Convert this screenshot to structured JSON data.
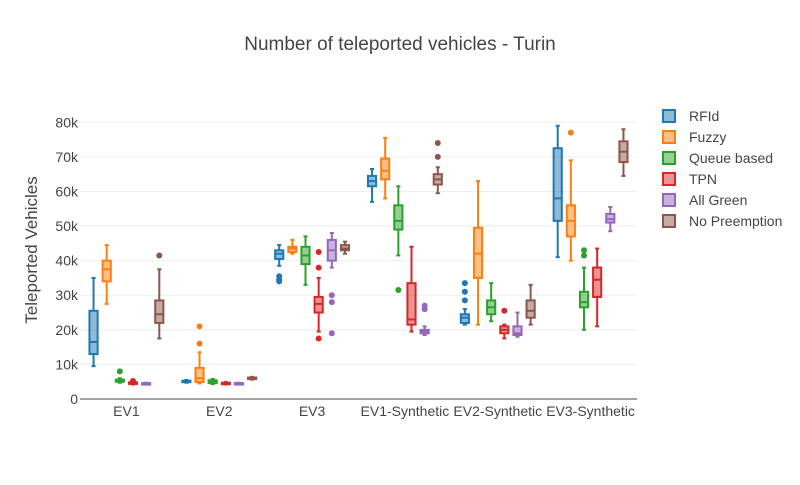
{
  "chart_data": {
    "type": "box",
    "title": "Number of teleported vehicles - Turin",
    "ylabel": "Teleported Vehicles",
    "xlabel": "",
    "ylim": [
      0,
      85000
    ],
    "yticks": [
      0,
      10000,
      20000,
      30000,
      40000,
      50000,
      60000,
      70000,
      80000
    ],
    "ytick_labels": [
      "0",
      "10k",
      "20k",
      "30k",
      "40k",
      "50k",
      "60k",
      "70k",
      "80k"
    ],
    "grid": true,
    "legend_position": "right",
    "categories": [
      "EV1",
      "EV2",
      "EV3",
      "EV1-Synthetic",
      "EV2-Synthetic",
      "EV3-Synthetic"
    ],
    "series": [
      {
        "name": "RFId",
        "color": "#1f77b4",
        "boxes": [
          {
            "min": 9500,
            "q1": 13000,
            "median": 16500,
            "q3": 25500,
            "max": 35000,
            "outliers": []
          },
          {
            "min": 4700,
            "q1": 4900,
            "median": 5100,
            "q3": 5300,
            "max": 5500,
            "outliers": []
          },
          {
            "min": 38500,
            "q1": 40500,
            "median": 42000,
            "q3": 43000,
            "max": 44500,
            "outliers": [
              35500,
              34500,
              34000
            ]
          },
          {
            "min": 57000,
            "q1": 61500,
            "median": 63000,
            "q3": 64500,
            "max": 66500,
            "outliers": []
          },
          {
            "min": 21500,
            "q1": 22000,
            "median": 23500,
            "q3": 24500,
            "max": 26000,
            "outliers": [
              33500,
              31000,
              28500
            ]
          },
          {
            "min": 41000,
            "q1": 51500,
            "median": 58000,
            "q3": 72500,
            "max": 79000,
            "outliers": []
          }
        ]
      },
      {
        "name": "Fuzzy",
        "color": "#ff7f0e",
        "boxes": [
          {
            "min": 27500,
            "q1": 34000,
            "median": 37500,
            "q3": 40000,
            "max": 44500,
            "outliers": []
          },
          {
            "min": 4500,
            "q1": 4900,
            "median": 6000,
            "q3": 9000,
            "max": 13500,
            "outliers": [
              16000,
              21000
            ]
          },
          {
            "min": 42000,
            "q1": 42500,
            "median": 43500,
            "q3": 44000,
            "max": 46000,
            "outliers": []
          },
          {
            "min": 58000,
            "q1": 63500,
            "median": 66000,
            "q3": 69500,
            "max": 75500,
            "outliers": []
          },
          {
            "min": 21500,
            "q1": 35000,
            "median": 42000,
            "q3": 49500,
            "max": 63000,
            "outliers": []
          },
          {
            "min": 40000,
            "q1": 47000,
            "median": 51500,
            "q3": 56000,
            "max": 69000,
            "outliers": [
              77000
            ]
          }
        ]
      },
      {
        "name": "Queue based",
        "color": "#2ca02c",
        "boxes": [
          {
            "min": 4700,
            "q1": 5000,
            "median": 5300,
            "q3": 5600,
            "max": 6000,
            "outliers": [
              8000
            ]
          },
          {
            "min": 4300,
            "q1": 4600,
            "median": 5000,
            "q3": 5400,
            "max": 5800,
            "outliers": []
          },
          {
            "min": 33000,
            "q1": 39000,
            "median": 41500,
            "q3": 44000,
            "max": 47000,
            "outliers": []
          },
          {
            "min": 41500,
            "q1": 49000,
            "median": 51500,
            "q3": 56000,
            "max": 61500,
            "outliers": [
              31500
            ]
          },
          {
            "min": 22500,
            "q1": 24500,
            "median": 26500,
            "q3": 28500,
            "max": 33500,
            "outliers": []
          },
          {
            "min": 20000,
            "q1": 26500,
            "median": 28000,
            "q3": 31000,
            "max": 38000,
            "outliers": [
              43000,
              41500
            ]
          }
        ]
      },
      {
        "name": "TPN",
        "color": "#d62728",
        "boxes": [
          {
            "min": 4200,
            "q1": 4400,
            "median": 4500,
            "q3": 4800,
            "max": 5000,
            "outliers": [
              5200
            ]
          },
          {
            "min": 4200,
            "q1": 4400,
            "median": 4500,
            "q3": 4700,
            "max": 4900,
            "outliers": []
          },
          {
            "min": 19500,
            "q1": 25000,
            "median": 27500,
            "q3": 29500,
            "max": 35000,
            "outliers": [
              42500,
              38000,
              17500
            ]
          },
          {
            "min": 19500,
            "q1": 21500,
            "median": 23000,
            "q3": 33500,
            "max": 44000,
            "outliers": []
          },
          {
            "min": 17500,
            "q1": 19000,
            "median": 20000,
            "q3": 21000,
            "max": 21500,
            "outliers": [
              25500
            ]
          },
          {
            "min": 21000,
            "q1": 29500,
            "median": 34500,
            "q3": 38000,
            "max": 43500,
            "outliers": []
          }
        ]
      },
      {
        "name": "All Green",
        "color": "#9467bd",
        "boxes": [
          {
            "min": 4300,
            "q1": 4400,
            "median": 4500,
            "q3": 4600,
            "max": 4700,
            "outliers": []
          },
          {
            "min": 4300,
            "q1": 4400,
            "median": 4500,
            "q3": 4600,
            "max": 4700,
            "outliers": []
          },
          {
            "min": 38000,
            "q1": 40000,
            "median": 43000,
            "q3": 46000,
            "max": 48000,
            "outliers": [
              30000,
              28000,
              19000
            ]
          },
          {
            "min": 18500,
            "q1": 19000,
            "median": 19500,
            "q3": 20000,
            "max": 21000,
            "outliers": [
              27000,
              26000
            ]
          },
          {
            "min": 18000,
            "q1": 18500,
            "median": 19000,
            "q3": 21000,
            "max": 25000,
            "outliers": []
          },
          {
            "min": 48500,
            "q1": 51000,
            "median": 52000,
            "q3": 53500,
            "max": 55500,
            "outliers": []
          }
        ]
      },
      {
        "name": "No Preemption",
        "color": "#8c564b",
        "boxes": [
          {
            "min": 17500,
            "q1": 22000,
            "median": 24500,
            "q3": 28500,
            "max": 37500,
            "outliers": [
              41500
            ]
          },
          {
            "min": 5600,
            "q1": 5800,
            "median": 6000,
            "q3": 6200,
            "max": 6400,
            "outliers": []
          },
          {
            "min": 42000,
            "q1": 43000,
            "median": 43500,
            "q3": 44500,
            "max": 45500,
            "outliers": []
          },
          {
            "min": 59500,
            "q1": 62000,
            "median": 63500,
            "q3": 65000,
            "max": 67000,
            "outliers": [
              74000,
              70000
            ]
          },
          {
            "min": 21500,
            "q1": 23500,
            "median": 25500,
            "q3": 28500,
            "max": 33000,
            "outliers": []
          },
          {
            "min": 64500,
            "q1": 68500,
            "median": 71500,
            "q3": 74500,
            "max": 78000,
            "outliers": []
          }
        ]
      }
    ]
  }
}
